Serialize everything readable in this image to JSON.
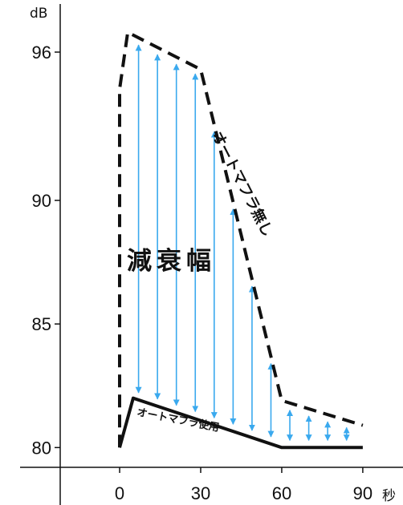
{
  "chart_data": {
    "type": "line",
    "title": "",
    "xlabel": "",
    "ylabel": "",
    "y_unit": "dB",
    "x_unit": "秒",
    "xlim": [
      -22,
      93
    ],
    "ylim": [
      79.2,
      97.2
    ],
    "x_ticks": [
      0,
      30,
      60,
      90
    ],
    "y_ticks": [
      80,
      85,
      90,
      96
    ],
    "grid": false,
    "colors": {
      "without": "#111111",
      "with": "#111111",
      "arrows": "#3aa9ee"
    },
    "series": [
      {
        "name": "オートマフラ無し",
        "style": "dashed",
        "x": [
          0,
          0,
          3,
          30,
          60,
          90
        ],
        "y": [
          80,
          94.5,
          96.8,
          95.3,
          81.9,
          80.9
        ]
      },
      {
        "name": "オートマフラ使用",
        "style": "solid",
        "x": [
          0,
          5,
          60,
          90
        ],
        "y": [
          80,
          82,
          80,
          80
        ]
      }
    ],
    "annotation": {
      "label": "減衰幅",
      "arrow_x": [
        7,
        14,
        21,
        28,
        35,
        42,
        49,
        56,
        63,
        70,
        77,
        84
      ]
    }
  }
}
